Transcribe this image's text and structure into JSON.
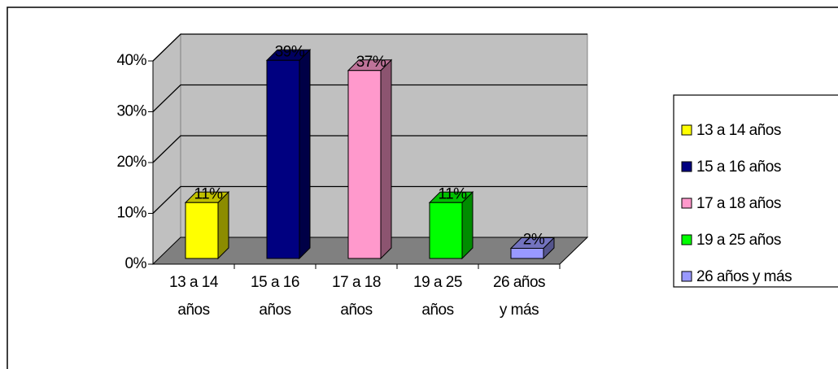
{
  "chart_data": {
    "type": "bar3d",
    "categories": [
      "13 a 14 años",
      "15 a 16 años",
      "17 a 18 años",
      "19 a 25 años",
      "26 años y más"
    ],
    "values": [
      11,
      39,
      37,
      11,
      2
    ],
    "value_labels": [
      "11%",
      "39%",
      "37%",
      "11%",
      "2%"
    ],
    "colors": [
      "#ffff00",
      "#000080",
      "#ff99cc",
      "#00ff00",
      "#9999ff"
    ],
    "ylim": [
      0,
      40
    ],
    "yticks": [
      {
        "value": 0,
        "label": "0%"
      },
      {
        "value": 10,
        "label": "10%"
      },
      {
        "value": 20,
        "label": "20%"
      },
      {
        "value": 30,
        "label": "30%"
      },
      {
        "value": 40,
        "label": "40%"
      }
    ],
    "grid": true,
    "legend": "right"
  }
}
